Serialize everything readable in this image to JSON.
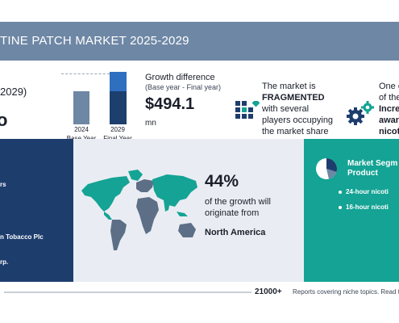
{
  "banner": {
    "title": "TINE PATCH MARKET 2025-2029"
  },
  "cagr": {
    "label": "2029)",
    "value": "o"
  },
  "bars": {
    "base_year": "2024",
    "base_caption": "Base Year",
    "final_year": "2029",
    "final_caption": "Final Year"
  },
  "growth": {
    "title": "Growth difference",
    "subtitle": "(Base year - Final year)",
    "value": "$494.1",
    "unit": "mn"
  },
  "fragmentation": {
    "line1": "The market is",
    "highlight": "FRAGMENTED",
    "line3": "with several",
    "line4": "players occupying",
    "line5": "the market share"
  },
  "driver": {
    "line1": "One o",
    "line2": "of the",
    "line3": "Incre",
    "line4": "awar",
    "line5": "nicot"
  },
  "vendors": {
    "line1": "rs",
    "line2": "n Tobacco Plc",
    "line3": "rp."
  },
  "geography": {
    "percent": "44%",
    "text": "of the growth will originate from",
    "region": "North America"
  },
  "segments": {
    "title_line1": "Market Segm",
    "title_line2": "Product",
    "items": [
      "24-hour nicoti",
      "16-hour nicoti"
    ]
  },
  "footer": {
    "count": "21000+",
    "text": "Reports covering niche topics. Read t"
  },
  "colors": {
    "banner": "#6e87a5",
    "navy": "#1d3d6d",
    "teal": "#14a394",
    "bar_highlight": "#2f6fbf"
  }
}
